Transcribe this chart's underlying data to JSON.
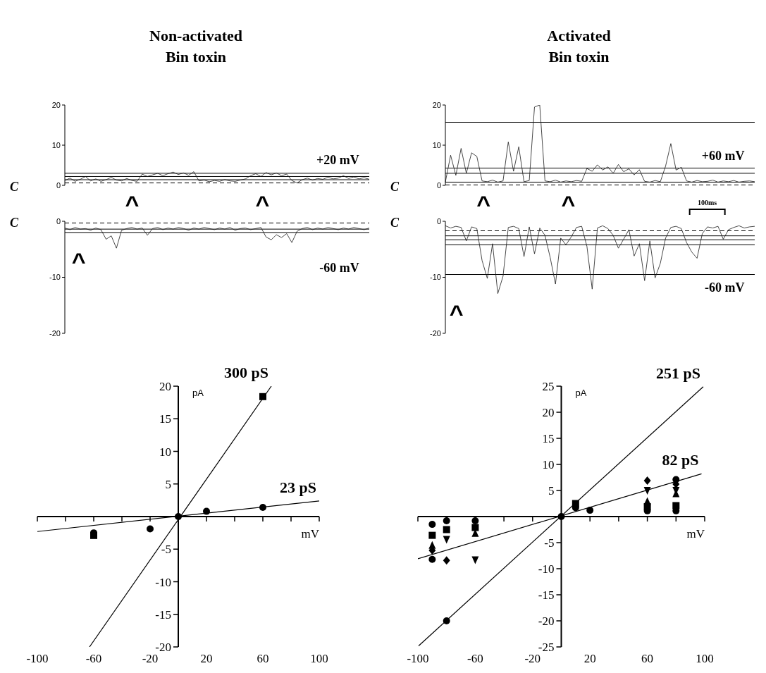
{
  "chart_data": [
    {
      "type": "line",
      "title": "Non-activated Bin toxin",
      "categories": [
        null,
        null,
        null,
        null,
        null,
        null,
        null,
        null,
        null,
        null,
        null,
        null,
        null,
        null,
        null,
        null,
        null,
        null,
        null,
        null,
        null,
        null,
        null,
        null,
        null,
        null,
        null,
        null,
        null,
        null,
        null,
        null,
        null,
        null,
        null,
        null,
        null,
        null,
        null,
        null,
        null,
        null,
        null,
        null,
        null,
        null,
        null,
        null,
        null,
        null,
        null,
        null,
        null,
        null,
        null,
        null,
        null,
        null,
        null,
        null
      ],
      "values": [
        1.2,
        1.8,
        1,
        1.5,
        2.2,
        1.1,
        1.6,
        1,
        1.4,
        2,
        1.3,
        1.1,
        1.7,
        1.2,
        1,
        2.8,
        2.2,
        2.6,
        3,
        2.4,
        2.9,
        3.3,
        2.7,
        3.1,
        2.5,
        3.4,
        1.1,
        1.3,
        0.9,
        1.2,
        1,
        1.4,
        1.1,
        1,
        1.3,
        1.6,
        2.4,
        2.9,
        2.2,
        3.2,
        2.6,
        3.1,
        2.4,
        2.8,
        1.2,
        0.6,
        1.4,
        1.8,
        1.3,
        1.7,
        1.5,
        2,
        1.6,
        1.8,
        2.4,
        1.7,
        2.1,
        1.6,
        1.9,
        1.5
      ],
      "color": "#1a1a1a",
      "ylim": [
        0,
        20
      ],
      "yticks": [
        0,
        10,
        20
      ],
      "tick_labels": "y",
      "ref_lines": [
        {
          "axis": "y",
          "value": 0.6,
          "line_style": "dashed",
          "color": "#000000"
        },
        {
          "axis": "y",
          "value": 1.4,
          "color": "#000000"
        },
        {
          "axis": "y",
          "value": 2.2,
          "color": "#000000"
        },
        {
          "axis": "y",
          "value": 3,
          "color": "#000000"
        }
      ],
      "annotations": [
        "+20 mV",
        "C",
        "^",
        "^"
      ]
    },
    {
      "type": "line",
      "title": "Activated Bin toxin",
      "categories": [
        null,
        null,
        null,
        null,
        null,
        null,
        null,
        null,
        null,
        null,
        null,
        null,
        null,
        null,
        null,
        null,
        null,
        null,
        null,
        null,
        null,
        null,
        null,
        null,
        null,
        null,
        null,
        null,
        null,
        null,
        null,
        null,
        null,
        null,
        null,
        null,
        null,
        null,
        null,
        null,
        null,
        null,
        null,
        null,
        null,
        null,
        null,
        null,
        null,
        null,
        null,
        null,
        null,
        null,
        null,
        null,
        null,
        null,
        null,
        null
      ],
      "values": [
        0.8,
        7.5,
        2.5,
        9.2,
        3,
        8.1,
        7.2,
        1.1,
        0.9,
        1.3,
        0.8,
        1.1,
        10.8,
        3.5,
        9.6,
        0.9,
        1.2,
        19.5,
        20,
        1.1,
        0.9,
        1.3,
        0.8,
        1.1,
        0.9,
        1.2,
        1,
        4.2,
        3.5,
        5.1,
        3.8,
        4.6,
        3,
        5.2,
        3.4,
        4.1,
        2.6,
        3.9,
        1,
        0.8,
        1.2,
        0.9,
        4.8,
        10.4,
        3.8,
        4.5,
        1.1,
        0.8,
        1.2,
        0.9,
        1,
        1.3,
        0.8,
        1.1,
        0.9,
        1.2,
        0.8,
        1,
        1.1,
        0.9
      ],
      "color": "#1a1a1a",
      "ylim": [
        0,
        20
      ],
      "yticks": [
        0,
        10,
        20
      ],
      "tick_labels": "y",
      "ref_lines": [
        {
          "axis": "y",
          "value": 0.1,
          "line_style": "dashed",
          "color": "#000000"
        },
        {
          "axis": "y",
          "value": 0.8,
          "color": "#000000"
        },
        {
          "axis": "y",
          "value": 3,
          "color": "#000000"
        },
        {
          "axis": "y",
          "value": 4.3,
          "color": "#000000"
        },
        {
          "axis": "y",
          "value": 15.7,
          "color": "#000000"
        }
      ],
      "annotations": [
        "+60 mV",
        "C",
        "^",
        "^",
        "100ms"
      ]
    },
    {
      "type": "line",
      "categories": [
        null,
        null,
        null,
        null,
        null,
        null,
        null,
        null,
        null,
        null,
        null,
        null,
        null,
        null,
        null,
        null,
        null,
        null,
        null,
        null,
        null,
        null,
        null,
        null,
        null,
        null,
        null,
        null,
        null,
        null,
        null,
        null,
        null,
        null,
        null,
        null,
        null,
        null,
        null,
        null,
        null,
        null,
        null,
        null,
        null,
        null,
        null,
        null,
        null,
        null,
        null,
        null,
        null,
        null,
        null,
        null,
        null,
        null,
        null,
        null
      ],
      "values": [
        -1.2,
        -1.5,
        -1.1,
        -1.4,
        -1.3,
        -1.6,
        -1.2,
        -1.5,
        -3.2,
        -2.6,
        -4.8,
        -1.6,
        -1.3,
        -1.1,
        -1.4,
        -1.2,
        -2.5,
        -1.3,
        -1.1,
        -1.5,
        -1.2,
        -1.4,
        -1.1,
        -1.3,
        -1.6,
        -1.2,
        -1.4,
        -1.1,
        -1.3,
        -1.5,
        -1.2,
        -1.4,
        -1.1,
        -1.6,
        -1.3,
        -1.2,
        -1.5,
        -1.3,
        -1.1,
        -2.8,
        -3.3,
        -2.4,
        -2.9,
        -2.2,
        -3.8,
        -1.8,
        -1.3,
        -1.1,
        -1.5,
        -1.2,
        -1.4,
        -1.1,
        -1.3,
        -1.5,
        -1.2,
        -1.4,
        -1.1,
        -1.3,
        -1.5,
        -1.2
      ],
      "color": "#1a1a1a",
      "ylim": [
        -20,
        0
      ],
      "yticks": [
        0,
        -10,
        -20
      ],
      "tick_labels": "y",
      "ref_lines": [
        {
          "axis": "y",
          "value": -0.3,
          "line_style": "dashed",
          "color": "#000000"
        },
        {
          "axis": "y",
          "value": -1.4,
          "color": "#000000"
        },
        {
          "axis": "y",
          "value": -2,
          "color": "#000000"
        }
      ],
      "annotations": [
        "-60 mV",
        "C",
        "^"
      ]
    },
    {
      "type": "line",
      "categories": [
        null,
        null,
        null,
        null,
        null,
        null,
        null,
        null,
        null,
        null,
        null,
        null,
        null,
        null,
        null,
        null,
        null,
        null,
        null,
        null,
        null,
        null,
        null,
        null,
        null,
        null,
        null,
        null,
        null,
        null,
        null,
        null,
        null,
        null,
        null,
        null,
        null,
        null,
        null,
        null,
        null,
        null,
        null,
        null,
        null,
        null,
        null,
        null,
        null,
        null,
        null,
        null,
        null,
        null,
        null,
        null,
        null,
        null,
        null,
        null
      ],
      "values": [
        -0.8,
        -1.2,
        -0.9,
        -1.1,
        -3.5,
        -1,
        -1.3,
        -7,
        -10.2,
        -4,
        -12.9,
        -9.8,
        -1.1,
        -0.9,
        -1.3,
        -6.3,
        -1,
        -5.8,
        -1.2,
        -2.5,
        -6.5,
        -11.2,
        -3,
        -4.2,
        -2.8,
        -1.1,
        -0.9,
        -4.5,
        -12.1,
        -1.2,
        -0.8,
        -1.3,
        -2.5,
        -4.8,
        -3.2,
        -1.5,
        -6.2,
        -4,
        -10.6,
        -3.5,
        -10.1,
        -7.5,
        -3,
        -1.1,
        -0.9,
        -1.3,
        -3.8,
        -5.5,
        -6.6,
        -2.2,
        -1,
        -1.2,
        -0.9,
        -3.2,
        -1.5,
        -1.1,
        -0.8,
        -1.2,
        -1,
        -0.9
      ],
      "color": "#1a1a1a",
      "ylim": [
        -20,
        0
      ],
      "yticks": [
        0,
        -10,
        -20
      ],
      "tick_labels": "y",
      "ref_lines": [
        {
          "axis": "y",
          "value": -1.7,
          "line_style": "dashed",
          "color": "#000000"
        },
        {
          "axis": "y",
          "value": -2.6,
          "color": "#000000"
        },
        {
          "axis": "y",
          "value": -3.3,
          "color": "#000000"
        },
        {
          "axis": "y",
          "value": -4.2,
          "color": "#000000"
        },
        {
          "axis": "y",
          "value": -9.5,
          "color": "#000000"
        }
      ],
      "annotations": [
        "-60 mV",
        "C",
        "^"
      ]
    },
    {
      "type": "scatter",
      "xlabel": "mV",
      "ylabel": "pA",
      "xlim": [
        -100,
        100
      ],
      "ylim": [
        -20,
        20
      ],
      "xticks": [
        -100,
        {
          "value": -80,
          "label": null
        },
        -60,
        {
          "value": -40,
          "label": null
        },
        -20,
        20,
        {
          "value": 40,
          "label": null
        },
        60,
        {
          "value": 80,
          "label": null
        },
        100
      ],
      "yticks": [
        -20,
        -15,
        -10,
        -5,
        5,
        10,
        15,
        20
      ],
      "series": [
        {
          "type": "scatter",
          "marker": "circle",
          "color": "#000000",
          "x": [
            -60,
            -20,
            0,
            20,
            60
          ],
          "values": [
            -2.5,
            -1.9,
            0,
            0.8,
            1.4
          ]
        },
        {
          "type": "scatter",
          "marker": "square",
          "color": "#000000",
          "x": [
            60,
            -60
          ],
          "values": [
            18.4,
            -2.9
          ]
        },
        {
          "type": "line",
          "name": "300 pS",
          "marker": "none",
          "color": "#000000",
          "x": [
            -63,
            66
          ],
          "values": [
            -20,
            20
          ]
        },
        {
          "type": "line",
          "name": "23 pS",
          "marker": "none",
          "color": "#000000",
          "x": [
            -100,
            100
          ],
          "values": [
            -2.3,
            2.4
          ]
        }
      ]
    },
    {
      "type": "scatter",
      "xlabel": "mV",
      "ylabel": "pA",
      "xlim": [
        -100,
        100
      ],
      "ylim": [
        -25,
        25
      ],
      "xticks": [
        -100,
        {
          "value": -80,
          "label": null
        },
        -60,
        {
          "value": -40,
          "label": null
        },
        -20,
        20,
        {
          "value": 40,
          "label": null
        },
        60,
        {
          "value": 80,
          "label": null
        },
        100
      ],
      "yticks": [
        -25,
        -20,
        -15,
        -10,
        -5,
        5,
        10,
        15,
        20,
        25
      ],
      "series": [
        {
          "type": "scatter",
          "marker": "circle",
          "color": "#000000",
          "x": [
            -90,
            -90,
            -80,
            -80,
            -60,
            0,
            10,
            20,
            60,
            80,
            80
          ],
          "values": [
            -1.5,
            -8.2,
            -0.8,
            -20,
            -0.8,
            0,
            1.7,
            1.2,
            1.1,
            7.1,
            1.1
          ]
        },
        {
          "type": "scatter",
          "marker": "square",
          "color": "#000000",
          "x": [
            -90,
            -80,
            -60,
            10,
            60,
            80
          ],
          "values": [
            -3.6,
            -2.5,
            -2.1,
            2.5,
            1.9,
            2.1
          ]
        },
        {
          "type": "scatter",
          "marker": "triangle",
          "color": "#000000",
          "x": [
            -90,
            -60,
            60,
            80
          ],
          "values": [
            -5.5,
            -3.2,
            2.9,
            4.4
          ]
        },
        {
          "type": "scatter",
          "marker": "triangle_down",
          "color": "#000000",
          "x": [
            -80,
            -60,
            60,
            80
          ],
          "values": [
            -4.4,
            -8.3,
            5,
            5
          ]
        },
        {
          "type": "scatter",
          "marker": "diamond",
          "color": "#000000",
          "x": [
            -90,
            -80,
            60,
            80
          ],
          "values": [
            -6.5,
            -8.4,
            6.9,
            6.2
          ]
        },
        {
          "type": "line",
          "name": "251 pS",
          "marker": "none",
          "color": "#000000",
          "x": [
            -99.5,
            99
          ],
          "values": [
            -24.8,
            24.9
          ]
        },
        {
          "type": "line",
          "name": "82 pS",
          "marker": "none",
          "color": "#000000",
          "x": [
            -100,
            97.8
          ],
          "values": [
            -8.1,
            8.2
          ]
        }
      ]
    }
  ]
}
